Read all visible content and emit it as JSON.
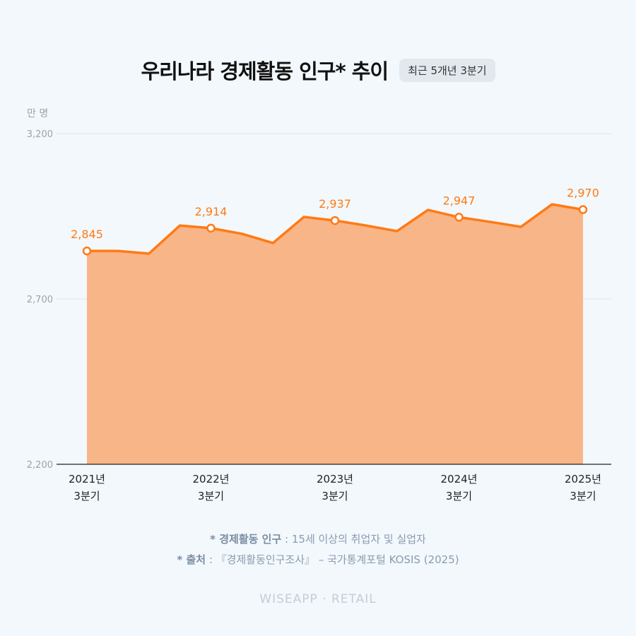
{
  "header": {
    "title": "우리나라 경제활동 인구* 추이",
    "badge": "최근  5개년 3분기"
  },
  "colors": {
    "line": "#ff7a14",
    "fill": "#f8b587",
    "grid": "#dde5ec"
  },
  "chart_data": {
    "type": "area",
    "title": "우리나라 경제활동 인구* 추이",
    "ylabel": "만 명",
    "ylim": [
      2200,
      3200
    ],
    "yticks": [
      "2,200",
      "2,700",
      "3,200"
    ],
    "ytick_values": [
      2200,
      2700,
      3200
    ],
    "x": [
      "2021Q3",
      "2021Q4",
      "2022Q1",
      "2022Q2",
      "2022Q3",
      "2022Q4",
      "2023Q1",
      "2023Q2",
      "2023Q3",
      "2023Q4",
      "2024Q1",
      "2024Q2",
      "2024Q3",
      "2024Q4",
      "2025Q1",
      "2025Q2",
      "2025Q3"
    ],
    "values": [
      2845,
      2845,
      2837,
      2922,
      2914,
      2897,
      2869,
      2948,
      2937,
      2922,
      2905,
      2969,
      2947,
      2933,
      2918,
      2986,
      2970
    ],
    "labeled_points": [
      {
        "index": 0,
        "label": "2,845",
        "tick1": "2021년",
        "tick2": "3분기"
      },
      {
        "index": 4,
        "label": "2,914",
        "tick1": "2022년",
        "tick2": "3분기"
      },
      {
        "index": 8,
        "label": "2,937",
        "tick1": "2023년",
        "tick2": "3분기"
      },
      {
        "index": 12,
        "label": "2,947",
        "tick1": "2024년",
        "tick2": "3분기"
      },
      {
        "index": 16,
        "label": "2,970",
        "tick1": "2025년",
        "tick2": "3분기"
      }
    ]
  },
  "footnotes": {
    "def_key": "* 경제활동 인구",
    "def_text": " : 15세 이상의 취업자 및 실업자",
    "src_key": "* 출처",
    "src_text": " : 『경제활동인구조사』 – 국가통계포털 KOSIS (2025)"
  },
  "brand": "WISEAPP · RETAIL"
}
